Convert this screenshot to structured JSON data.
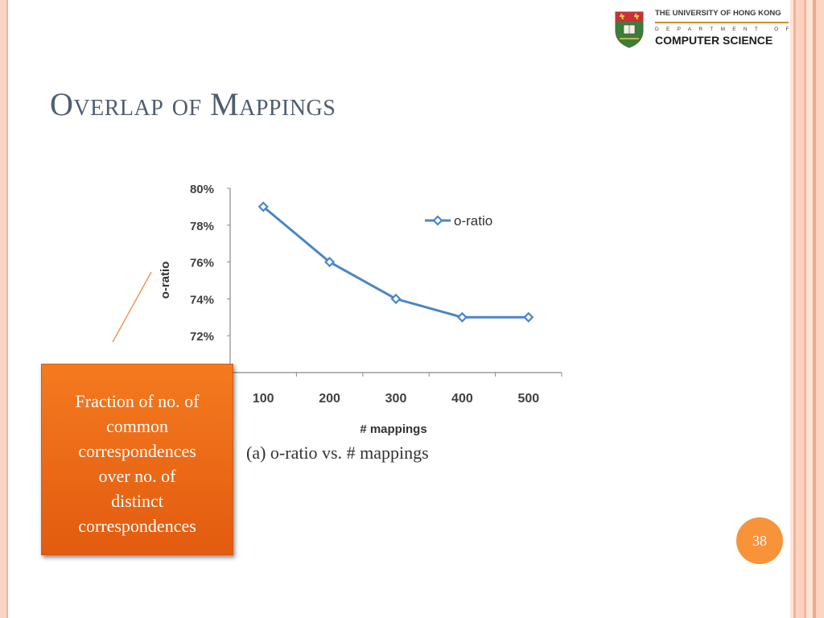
{
  "slide": {
    "title": "Overlap of Mappings",
    "page_number": "38"
  },
  "logo": {
    "line1": "THE UNIVERSITY OF HONG KONG",
    "line2": "DEPARTMENT OF",
    "line3": "COMPUTER SCIENCE"
  },
  "callout": {
    "lines": [
      "Fraction of no. of",
      "common",
      "correspondences",
      "over no. of",
      "distinct",
      "correspondences"
    ]
  },
  "colors": {
    "line": "#4a86c6",
    "callout": "#f47a1f",
    "title": "#4f5d6e"
  },
  "chart_data": {
    "type": "line",
    "title": "",
    "caption": "(a) o-ratio vs. # mappings",
    "xlabel": "# mappings",
    "ylabel": "o-ratio",
    "categories": [
      "100",
      "200",
      "300",
      "400",
      "500"
    ],
    "series": [
      {
        "name": "o-ratio",
        "values": [
          79,
          76,
          74,
          73,
          73
        ]
      }
    ],
    "y_ticks": [
      "72%",
      "74%",
      "76%",
      "78%",
      "80%"
    ],
    "ylim": [
      70,
      80
    ],
    "legend": "top-right",
    "grid": false
  }
}
